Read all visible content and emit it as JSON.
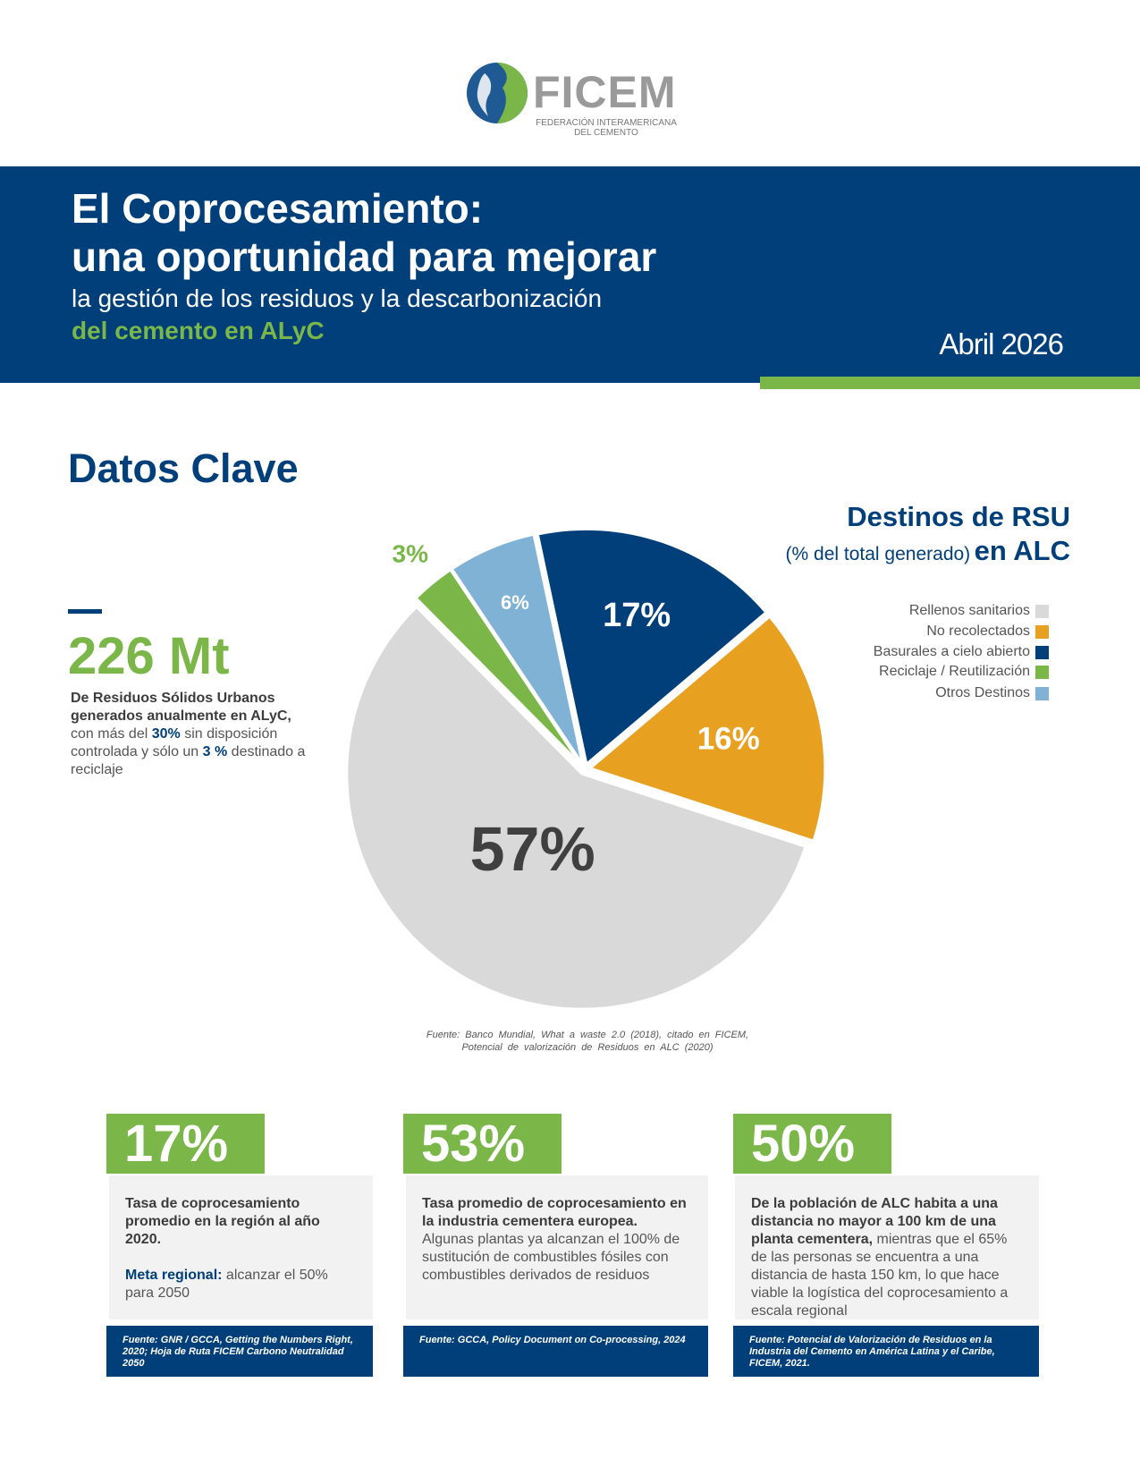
{
  "header": {
    "logo_name": "FICEM",
    "logo_subtitle": [
      "FEDERACIÓN INTERAMERICANA",
      "DEL CEMENTO"
    ],
    "title": [
      "El Coprocesamiento:",
      "una oportunidad para mejorar"
    ],
    "subtitle": "la gestión de los residuos y la descarbonización",
    "subtitle_highlight": "del cemento en ALyC",
    "date": "Abril 2026"
  },
  "section_title": "Datos Clave",
  "key_figure": {
    "value": "226 Mt",
    "description": [
      {
        "text": "De Residuos Sólidos Urbanos generados anualmente en ALyC,",
        "style": "bold"
      },
      {
        "text": " con más del ",
        "style": "normal"
      },
      {
        "text": "30%",
        "style": "accent"
      },
      {
        "text": " sin disposición controlada y sólo un ",
        "style": "normal"
      },
      {
        "text": "3 %",
        "style": "accent"
      },
      {
        "text": " destinado a reciclaje",
        "style": "normal"
      }
    ]
  },
  "chart_data": {
    "type": "pie",
    "title": "Destinos de RSU",
    "subtitle": "(% del total generado)",
    "title_suffix": "en ALC",
    "categories": [
      "Rellenos sanitarios",
      "No recolectados",
      "Basurales a cielo abierto",
      "Reciclaje / Reutilización",
      "Otros Destinos"
    ],
    "values": [
      57,
      16,
      17,
      3,
      6
    ],
    "value_labels": [
      "57%",
      "16%",
      "17%",
      "3%",
      "6%"
    ],
    "colors": [
      "#d9d9d9",
      "#e8a020",
      "#003f7a",
      "#7ab648",
      "#7fb2d5"
    ],
    "source": [
      "Fuente: Banco Mundial, What a waste 2.0 (2018), citado en FICEM,",
      "Potencial de valorización de Residuos en ALC (2020)"
    ]
  },
  "cards": [
    {
      "value": "17%",
      "paragraphs": [
        [
          {
            "text": "Tasa de coprocesamiento promedio en la región al año 2020.",
            "style": "bold"
          }
        ],
        [
          {
            "text": "Meta regional:",
            "style": "accent"
          },
          {
            "text": " alcanzar el 50% para 2050",
            "style": "normal"
          }
        ]
      ],
      "source": "Fuente: GNR / GCCA, Getting the Numbers Right, 2020; Hoja de Ruta FICEM Carbono Neutralidad 2050"
    },
    {
      "value": "53%",
      "paragraphs": [
        [
          {
            "text": "Tasa promedio de coprocesamiento en la industria cementera europea.",
            "style": "bold"
          },
          {
            "text": " Algunas plantas ya alcanzan el 100% de sustitución de combustibles fósiles con combustibles derivados de residuos",
            "style": "normal"
          }
        ]
      ],
      "source": "Fuente: GCCA, Policy Document on Co-processing, 2024"
    },
    {
      "value": "50%",
      "paragraphs": [
        [
          {
            "text": "De la población de ALC habita a una distancia no mayor a 100 km de una planta cementera,",
            "style": "bold"
          },
          {
            "text": " mientras que el 65% de las personas se encuentra a una distancia de hasta 150 km, lo que hace viable la logística del coprocesamiento a escala regional",
            "style": "normal"
          }
        ]
      ],
      "source": "Fuente: Potencial de Valorización de Residuos en la Industria del Cemento en América Latina y el Caribe, FICEM, 2021."
    }
  ]
}
